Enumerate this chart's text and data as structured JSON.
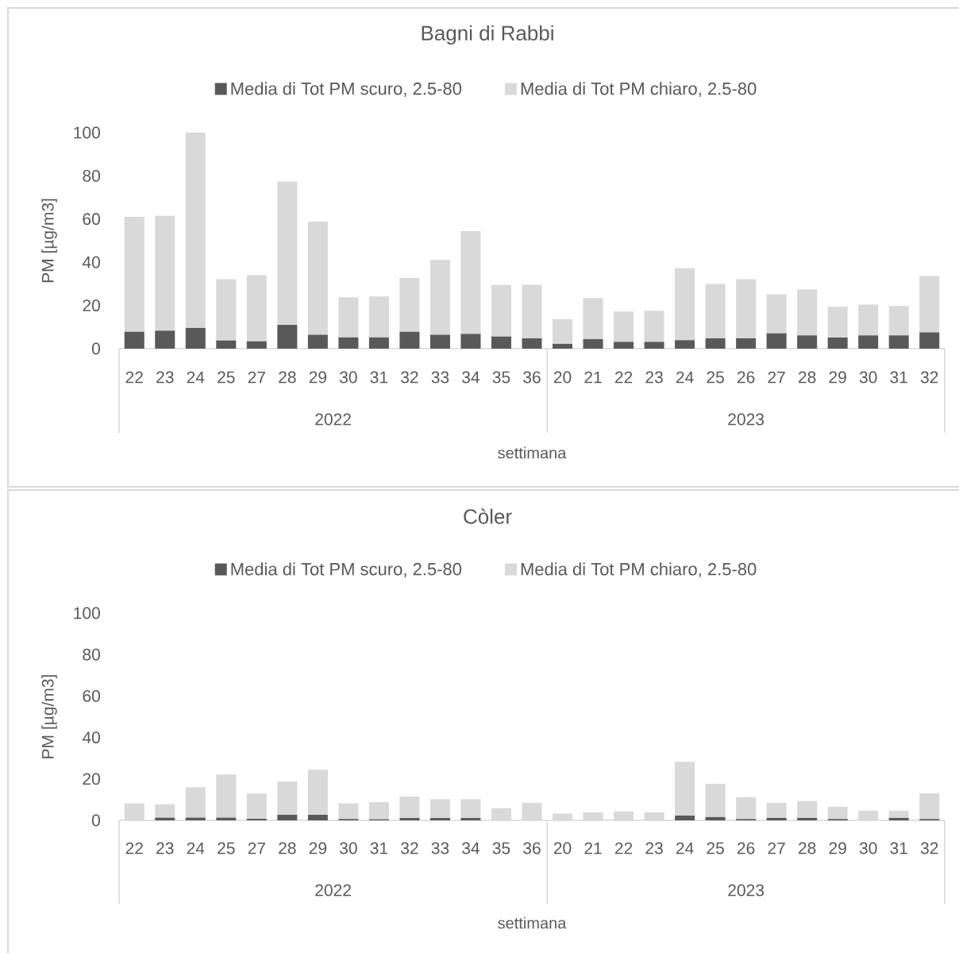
{
  "chart_data": [
    {
      "type": "bar",
      "stacked": true,
      "title": "Bagni di Rabbi",
      "xlabel": "settimana",
      "ylabel": "PM [µg/m3]",
      "legend": "top",
      "categories": [
        "22",
        "23",
        "24",
        "25",
        "27",
        "28",
        "29",
        "30",
        "31",
        "32",
        "33",
        "34",
        "35",
        "36",
        "20",
        "21",
        "22",
        "23",
        "24",
        "25",
        "26",
        "27",
        "28",
        "29",
        "30",
        "31",
        "32"
      ],
      "annotations": [
        "2022",
        "2023"
      ],
      "series": [
        {
          "name": "Media di Tot PM scuro, 2.5-80",
          "color": "#595959",
          "values": [
            7.9,
            8.4,
            9.7,
            3.9,
            3.5,
            11.0,
            6.5,
            5.3,
            5.3,
            7.9,
            6.5,
            6.9,
            5.7,
            4.8,
            2.2,
            4.4,
            3.2,
            3.2,
            4.0,
            4.8,
            4.8,
            7.2,
            6.2,
            5.2,
            6.2,
            6.2,
            7.6
          ]
        },
        {
          "name": "Media di Tot PM chiaro, 2.5-80",
          "color": "#d9d9d9",
          "values": [
            53.1,
            53.1,
            90.3,
            28.3,
            30.5,
            66.4,
            52.3,
            18.5,
            18.9,
            24.8,
            34.6,
            47.5,
            23.8,
            24.8,
            11.4,
            19.0,
            14.0,
            14.4,
            33.2,
            25.2,
            27.4,
            18.0,
            21.2,
            14.2,
            14.2,
            13.6,
            26.0
          ]
        }
      ],
      "ylim": [
        0,
        100
      ],
      "yticks": [
        0,
        20,
        40,
        60,
        80,
        100
      ]
    },
    {
      "type": "bar",
      "stacked": true,
      "title": "Còler",
      "xlabel": "settimana",
      "ylabel": "PM [µg/m3]",
      "legend": "top",
      "categories": [
        "22",
        "23",
        "24",
        "25",
        "27",
        "28",
        "29",
        "30",
        "31",
        "32",
        "33",
        "34",
        "35",
        "36",
        "20",
        "21",
        "22",
        "23",
        "24",
        "25",
        "26",
        "27",
        "28",
        "29",
        "30",
        "31",
        "32"
      ],
      "annotations": [
        "2022",
        "2023"
      ],
      "series": [
        {
          "name": "Media di Tot PM scuro, 2.5-80",
          "color": "#595959",
          "values": [
            null,
            1.4,
            1.4,
            1.4,
            0.8,
            2.7,
            2.7,
            0.7,
            0.6,
            1.2,
            1.2,
            1.2,
            null,
            null,
            null,
            null,
            null,
            null,
            2.4,
            1.7,
            0.7,
            1.3,
            1.3,
            0.7,
            null,
            1.3,
            0.7
          ]
        },
        {
          "name": "Media di Tot PM chiaro, 2.5-80",
          "color": "#d9d9d9",
          "values": [
            8.2,
            6.4,
            14.6,
            20.7,
            12.1,
            16.1,
            21.7,
            7.5,
            8.2,
            10.3,
            9.0,
            9.0,
            5.9,
            8.5,
            3.3,
            3.9,
            4.3,
            3.9,
            25.9,
            15.9,
            10.5,
            7.2,
            8.0,
            5.9,
            4.7,
            3.4,
            12.4
          ]
        }
      ],
      "ylim": [
        0,
        100
      ],
      "yticks": [
        0,
        20,
        40,
        60,
        80,
        100
      ]
    }
  ]
}
